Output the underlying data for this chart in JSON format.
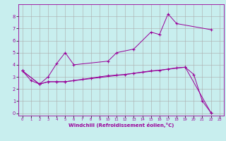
{
  "background_color": "#c8eeee",
  "line_color": "#990099",
  "grid_color": "#aaaaaa",
  "xlabel": "Windchill (Refroidissement éolien,°C)",
  "xlim": [
    -0.5,
    23.5
  ],
  "ylim": [
    -0.2,
    9.0
  ],
  "xticks": [
    0,
    1,
    2,
    3,
    4,
    5,
    6,
    7,
    8,
    9,
    10,
    11,
    12,
    13,
    14,
    15,
    16,
    17,
    18,
    19,
    20,
    21,
    22,
    23
  ],
  "yticks": [
    0,
    1,
    2,
    3,
    4,
    5,
    6,
    7,
    8
  ],
  "series": [
    {
      "x": [
        0,
        1,
        2,
        3,
        4,
        5,
        19,
        20,
        21,
        22
      ],
      "y": [
        3.5,
        2.7,
        2.4,
        2.6,
        2.6,
        2.6,
        3.8,
        3.2,
        1.0,
        0.05
      ]
    },
    {
      "x": [
        0,
        2,
        3,
        4,
        5,
        6,
        10,
        11,
        13,
        15,
        16,
        17,
        18,
        22
      ],
      "y": [
        3.5,
        2.4,
        3.0,
        4.1,
        5.0,
        4.0,
        4.3,
        5.0,
        5.3,
        6.7,
        6.5,
        8.2,
        7.4,
        6.9
      ]
    },
    {
      "x": [
        0,
        2,
        3,
        4,
        5,
        6,
        7,
        8,
        9,
        10,
        11,
        12,
        13,
        14,
        15,
        16,
        17,
        18,
        19,
        22
      ],
      "y": [
        3.5,
        2.4,
        2.6,
        2.6,
        2.6,
        2.7,
        2.8,
        2.9,
        3.0,
        3.1,
        3.15,
        3.2,
        3.3,
        3.4,
        3.5,
        3.55,
        3.65,
        3.75,
        3.8,
        0.05
      ]
    }
  ]
}
